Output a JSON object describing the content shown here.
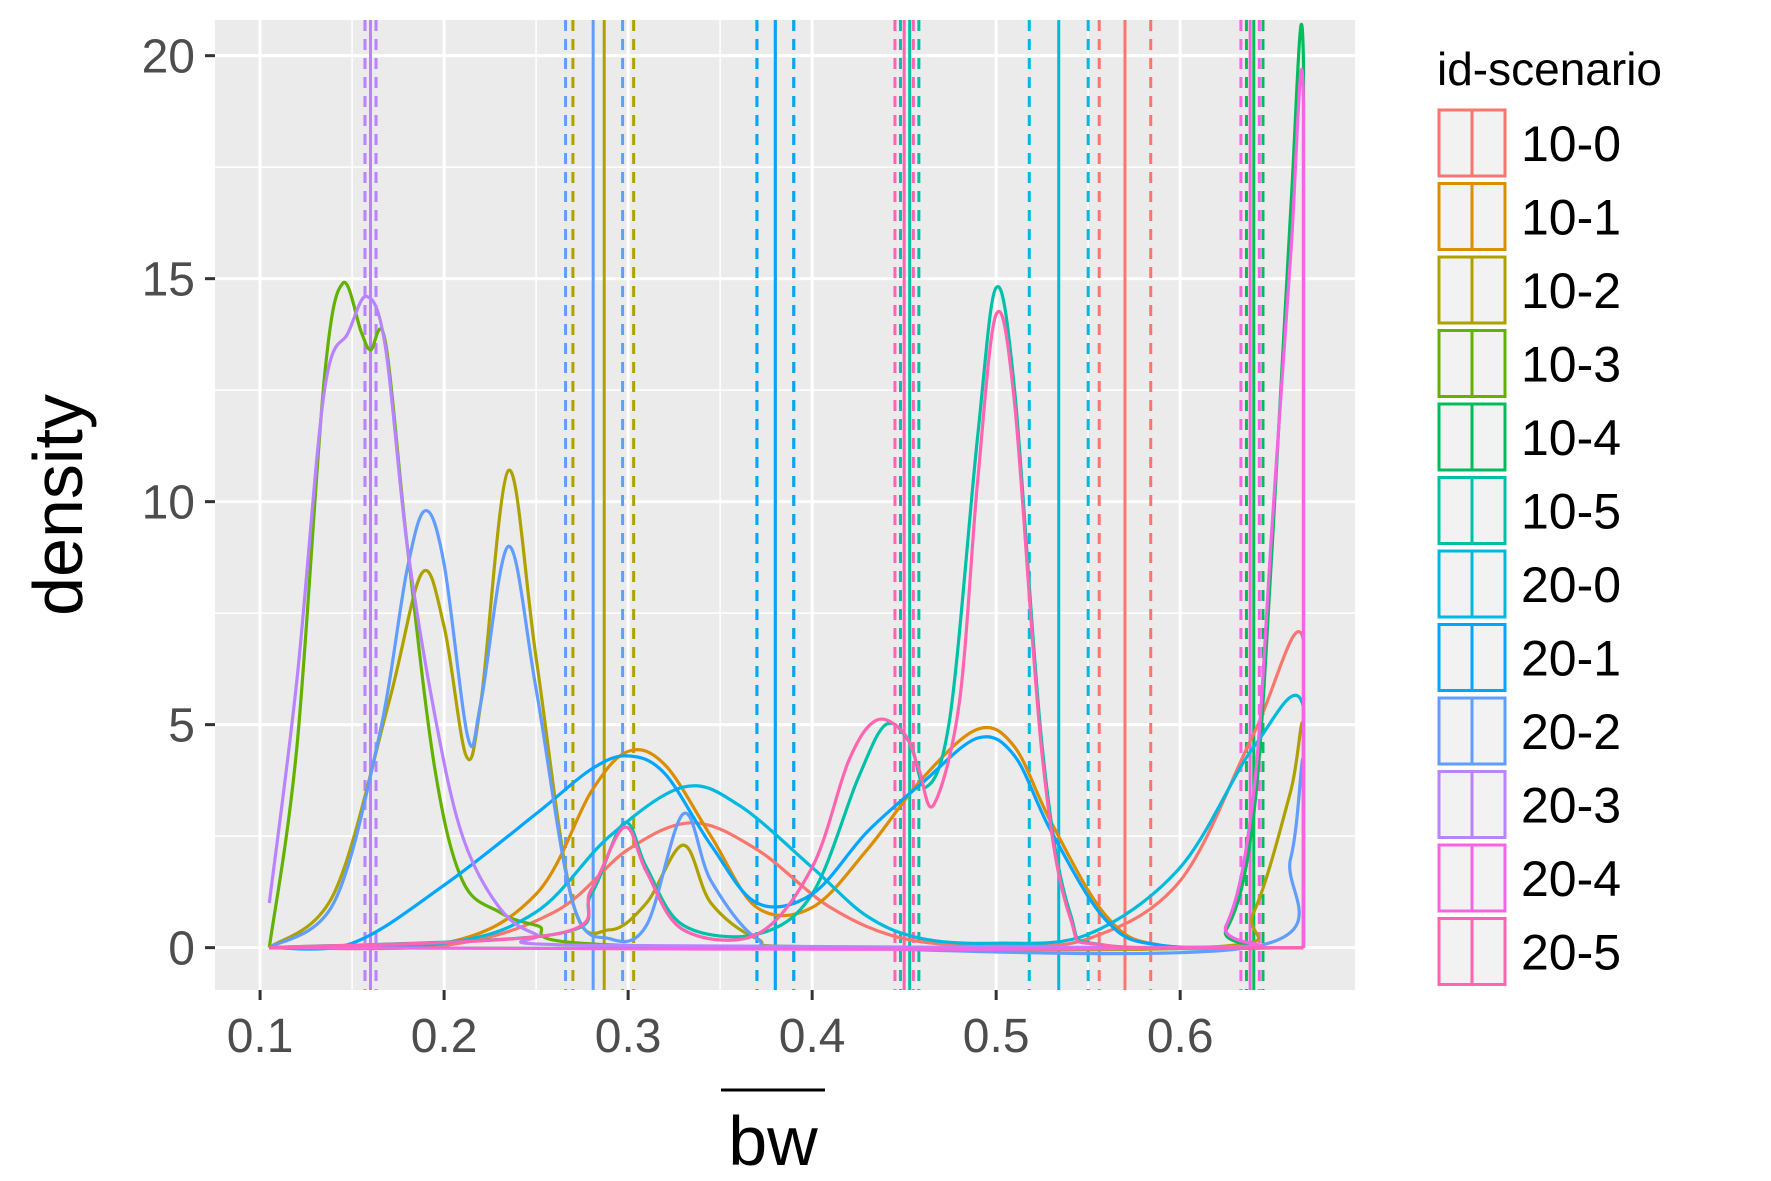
{
  "chart_data": {
    "type": "line",
    "title": "",
    "xlabel": "bw",
    "ylabel": "density",
    "xlim": [
      0.1,
      0.67
    ],
    "ylim": [
      0,
      20
    ],
    "x_ticks": [
      "0.1",
      "0.2",
      "0.3",
      "0.4",
      "0.5",
      "0.6"
    ],
    "y_ticks": [
      "0",
      "5",
      "10",
      "15",
      "20"
    ],
    "grid": true,
    "legend_position": "right",
    "legend_title": "id-scenario",
    "series": [
      {
        "name": "10-0",
        "color": "#F8766D",
        "mean": 0.57,
        "ci": [
          0.556,
          0.584
        ],
        "points": [
          [
            0.105,
            0
          ],
          [
            0.2,
            0.05
          ],
          [
            0.26,
            0.8
          ],
          [
            0.3,
            2.2
          ],
          [
            0.335,
            2.8
          ],
          [
            0.37,
            2.2
          ],
          [
            0.41,
            0.9
          ],
          [
            0.45,
            0.2
          ],
          [
            0.5,
            0.05
          ],
          [
            0.55,
            0.2
          ],
          [
            0.6,
            1.5
          ],
          [
            0.64,
            4.8
          ],
          [
            0.667,
            6.9
          ],
          [
            0.667,
            0
          ]
        ]
      },
      {
        "name": "10-1",
        "color": "#DB8E00",
        "mean": 0.38,
        "ci": [
          0.37,
          0.39
        ],
        "points": [
          [
            0.105,
            0
          ],
          [
            0.2,
            0.1
          ],
          [
            0.25,
            1.2
          ],
          [
            0.28,
            3.5
          ],
          [
            0.3,
            4.4
          ],
          [
            0.32,
            4.1
          ],
          [
            0.345,
            2.5
          ],
          [
            0.37,
            0.9
          ],
          [
            0.4,
            0.9
          ],
          [
            0.43,
            2.2
          ],
          [
            0.46,
            3.8
          ],
          [
            0.49,
            4.9
          ],
          [
            0.51,
            4.5
          ],
          [
            0.53,
            2.8
          ],
          [
            0.56,
            0.7
          ],
          [
            0.59,
            0.05
          ],
          [
            0.667,
            0
          ]
        ]
      },
      {
        "name": "10-2",
        "color": "#AEA200",
        "mean": 0.287,
        "ci": [
          0.27,
          0.303
        ],
        "points": [
          [
            0.105,
            0
          ],
          [
            0.14,
            1.2
          ],
          [
            0.17,
            5.5
          ],
          [
            0.188,
            8.4
          ],
          [
            0.2,
            7.2
          ],
          [
            0.212,
            4.3
          ],
          [
            0.22,
            5.5
          ],
          [
            0.235,
            10.7
          ],
          [
            0.25,
            6.5
          ],
          [
            0.27,
            1.0
          ],
          [
            0.29,
            0.4
          ],
          [
            0.31,
            1.0
          ],
          [
            0.33,
            2.3
          ],
          [
            0.345,
            1.0
          ],
          [
            0.37,
            0.2
          ],
          [
            0.4,
            0.02
          ],
          [
            0.62,
            0.02
          ],
          [
            0.64,
            0.8
          ],
          [
            0.66,
            3.5
          ],
          [
            0.667,
            4.9
          ],
          [
            0.667,
            0
          ]
        ]
      },
      {
        "name": "10-3",
        "color": "#64B200",
        "mean": 0.16,
        "ci": [
          0.157,
          0.163
        ],
        "points": [
          [
            0.105,
            0
          ],
          [
            0.12,
            4.5
          ],
          [
            0.135,
            12.8
          ],
          [
            0.145,
            14.9
          ],
          [
            0.155,
            13.8
          ],
          [
            0.16,
            13.4
          ],
          [
            0.168,
            13.6
          ],
          [
            0.18,
            9.0
          ],
          [
            0.195,
            4.0
          ],
          [
            0.21,
            1.5
          ],
          [
            0.23,
            0.8
          ],
          [
            0.25,
            0.5
          ],
          [
            0.3,
            0.05
          ],
          [
            0.667,
            0
          ]
        ]
      },
      {
        "name": "10-4",
        "color": "#00BD5C",
        "mean": 0.64,
        "ci": [
          0.636,
          0.645
        ],
        "points": [
          [
            0.105,
            0
          ],
          [
            0.6,
            0
          ],
          [
            0.625,
            0.4
          ],
          [
            0.64,
            3.0
          ],
          [
            0.65,
            9.0
          ],
          [
            0.66,
            16.5
          ],
          [
            0.667,
            19.8
          ],
          [
            0.667,
            0
          ]
        ]
      },
      {
        "name": "10-5",
        "color": "#00C1A7",
        "mean": 0.453,
        "ci": [
          0.448,
          0.458
        ],
        "points": [
          [
            0.105,
            0
          ],
          [
            0.26,
            0.3
          ],
          [
            0.28,
            1.2
          ],
          [
            0.298,
            2.8
          ],
          [
            0.31,
            1.8
          ],
          [
            0.33,
            0.5
          ],
          [
            0.37,
            0.3
          ],
          [
            0.4,
            1.2
          ],
          [
            0.425,
            3.8
          ],
          [
            0.44,
            5.0
          ],
          [
            0.453,
            4.6
          ],
          [
            0.462,
            3.6
          ],
          [
            0.475,
            5.2
          ],
          [
            0.49,
            11.5
          ],
          [
            0.5,
            14.8
          ],
          [
            0.51,
            12.5
          ],
          [
            0.525,
            4.5
          ],
          [
            0.54,
            0.8
          ],
          [
            0.56,
            0.05
          ],
          [
            0.667,
            0
          ]
        ]
      },
      {
        "name": "20-0",
        "color": "#00BADE",
        "mean": 0.534,
        "ci": [
          0.518,
          0.55
        ],
        "points": [
          [
            0.105,
            0
          ],
          [
            0.2,
            0.1
          ],
          [
            0.25,
            0.8
          ],
          [
            0.29,
            2.5
          ],
          [
            0.33,
            3.6
          ],
          [
            0.36,
            3.2
          ],
          [
            0.4,
            1.8
          ],
          [
            0.43,
            0.7
          ],
          [
            0.46,
            0.2
          ],
          [
            0.5,
            0.1
          ],
          [
            0.55,
            0.3
          ],
          [
            0.6,
            1.8
          ],
          [
            0.64,
            4.5
          ],
          [
            0.667,
            5.4
          ],
          [
            0.667,
            0
          ]
        ]
      },
      {
        "name": "20-1",
        "color": "#00A6FF",
        "mean": 0.38,
        "ci": [
          0.37,
          0.39
        ],
        "points": [
          [
            0.105,
            0
          ],
          [
            0.15,
            0.1
          ],
          [
            0.2,
            1.4
          ],
          [
            0.25,
            3.0
          ],
          [
            0.28,
            4.0
          ],
          [
            0.3,
            4.3
          ],
          [
            0.32,
            3.9
          ],
          [
            0.345,
            2.3
          ],
          [
            0.37,
            1.0
          ],
          [
            0.4,
            1.2
          ],
          [
            0.43,
            2.6
          ],
          [
            0.46,
            3.7
          ],
          [
            0.49,
            4.7
          ],
          [
            0.51,
            4.3
          ],
          [
            0.53,
            2.6
          ],
          [
            0.56,
            0.6
          ],
          [
            0.59,
            0.05
          ],
          [
            0.667,
            0
          ]
        ]
      },
      {
        "name": "20-2",
        "color": "#619CFF",
        "mean": 0.281,
        "ci": [
          0.266,
          0.297
        ],
        "points": [
          [
            0.105,
            0
          ],
          [
            0.14,
            1.0
          ],
          [
            0.165,
            4.8
          ],
          [
            0.18,
            8.5
          ],
          [
            0.19,
            9.8
          ],
          [
            0.2,
            8.6
          ],
          [
            0.213,
            4.7
          ],
          [
            0.22,
            5.5
          ],
          [
            0.235,
            9.0
          ],
          [
            0.25,
            5.8
          ],
          [
            0.27,
            1.0
          ],
          [
            0.29,
            0.2
          ],
          [
            0.31,
            0.5
          ],
          [
            0.33,
            3.0
          ],
          [
            0.345,
            1.5
          ],
          [
            0.37,
            0.2
          ],
          [
            0.4,
            0.02
          ],
          [
            0.64,
            0.02
          ],
          [
            0.66,
            2.0
          ],
          [
            0.667,
            4.2
          ],
          [
            0.667,
            0
          ]
        ]
      },
      {
        "name": "20-3",
        "color": "#B983FF",
        "mean": 0.16,
        "ci": [
          0.157,
          0.163
        ],
        "points": [
          [
            0.105,
            1.0
          ],
          [
            0.12,
            6.0
          ],
          [
            0.135,
            12.5
          ],
          [
            0.148,
            13.8
          ],
          [
            0.158,
            14.6
          ],
          [
            0.168,
            13.5
          ],
          [
            0.18,
            9.0
          ],
          [
            0.195,
            5.2
          ],
          [
            0.21,
            2.5
          ],
          [
            0.23,
            0.9
          ],
          [
            0.25,
            0.3
          ],
          [
            0.28,
            0.05
          ],
          [
            0.667,
            0
          ]
        ]
      },
      {
        "name": "20-4",
        "color": "#F564E3",
        "mean": 0.638,
        "ci": [
          0.633,
          0.643
        ],
        "points": [
          [
            0.105,
            0
          ],
          [
            0.6,
            0
          ],
          [
            0.625,
            0.5
          ],
          [
            0.64,
            3.5
          ],
          [
            0.65,
            9.5
          ],
          [
            0.66,
            15.5
          ],
          [
            0.667,
            18.9
          ],
          [
            0.667,
            0
          ]
        ]
      },
      {
        "name": "20-5",
        "color": "#FF64B0",
        "mean": 0.45,
        "ci": [
          0.445,
          0.455
        ],
        "points": [
          [
            0.105,
            0
          ],
          [
            0.26,
            0.3
          ],
          [
            0.28,
            1.3
          ],
          [
            0.298,
            2.7
          ],
          [
            0.31,
            1.7
          ],
          [
            0.33,
            0.4
          ],
          [
            0.37,
            0.3
          ],
          [
            0.4,
            1.8
          ],
          [
            0.42,
            4.2
          ],
          [
            0.435,
            5.1
          ],
          [
            0.45,
            4.8
          ],
          [
            0.458,
            4.0
          ],
          [
            0.466,
            3.2
          ],
          [
            0.48,
            5.5
          ],
          [
            0.49,
            10.5
          ],
          [
            0.5,
            14.2
          ],
          [
            0.51,
            12.2
          ],
          [
            0.525,
            4.3
          ],
          [
            0.54,
            0.7
          ],
          [
            0.56,
            0.05
          ],
          [
            0.667,
            0
          ]
        ]
      }
    ]
  }
}
